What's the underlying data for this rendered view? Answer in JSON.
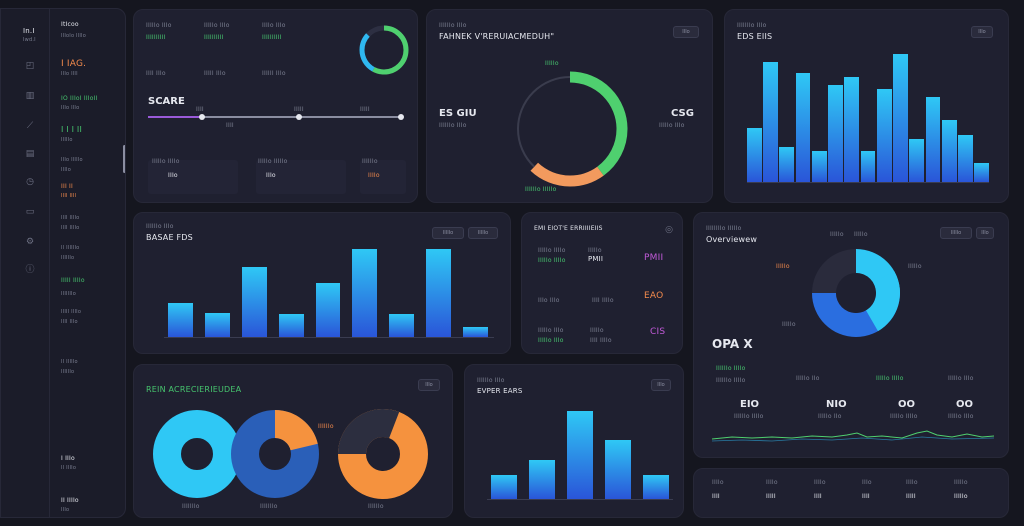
{
  "sidebar": {
    "title": "In.I",
    "subtitle": "Iwd.I",
    "items": [
      {
        "label": "ItIcoo",
        "sub": "IIIoIo IIIIo"
      },
      {
        "label": "I IAG.",
        "sub": "IIIo IIII"
      },
      {
        "label": "IO IIIoI IIIoII",
        "sub": "IIIo IIIo"
      },
      {
        "label": "I I I II",
        "sub": "IIIIIo"
      },
      {
        "label": "IIIo IIIIIo",
        "sub": "IIIIo"
      },
      {
        "label": "III II",
        "sub": "IIII IIII"
      },
      {
        "label": "IIII IIIIo",
        "sub": "IIII IIIIo"
      },
      {
        "label": "II IIIIIIo",
        "sub": "IIIIIIo"
      },
      {
        "label": "IIIII IIIIo",
        "sub": "IIIIIIIo"
      },
      {
        "label": "IIIII IIIIo",
        "sub": "IIII IIIo"
      },
      {
        "label": "II IIIIIo",
        "sub": "IIIIIIo"
      },
      {
        "label": "I IIIo",
        "sub": "II IIIIo"
      },
      {
        "label": "II IIIIo",
        "sub": "IIIo"
      }
    ],
    "icons": [
      "chart-icon",
      "grid-icon",
      "pen-icon",
      "folder-icon",
      "clock-icon",
      "doc-icon",
      "settings-icon",
      "info-icon"
    ]
  },
  "top_left": {
    "labels": [
      "IIIIIo IIIo",
      "IIIIIo IIIo",
      "IIIIo IIIo"
    ],
    "values": [
      "IIIIIIIIII",
      "IIIIIIIIII",
      "IIIIIIIIII"
    ],
    "small_values": [
      "IIII IIIo",
      "IIIII IIIo",
      "IIIIII IIIo"
    ],
    "heading": "SCARE",
    "slider_labels": [
      "IIII",
      "IIIII",
      "IIIII",
      "IIII"
    ],
    "stats": [
      {
        "label": "IIIIIo IIIIo",
        "value": "IIIo"
      },
      {
        "label": "IIIIIo IIIIIo",
        "value": "IIIo"
      },
      {
        "label": "IIIIIIo",
        "value": "IIIIo"
      }
    ]
  },
  "donut_panel": {
    "subtitle": "IIIIIIo IIIo",
    "title": "FAHNEK V'RERUIACMEDUH\"",
    "button": "IIIo",
    "left_value": "ES GIU",
    "left_caption": "IIIIIIo IIIo",
    "right_value": "CSG",
    "right_caption": "IIIIIo IIIo",
    "top_label": "IIIIIo",
    "bottom_label": "IIIIIIo IIIIIo",
    "segments": [
      {
        "name": "green",
        "value": 40,
        "color": "#4fd06f"
      },
      {
        "name": "orange",
        "value": 22,
        "color": "#f29a5e"
      },
      {
        "name": "dark",
        "value": 38,
        "color": "#3a3c4d"
      }
    ]
  },
  "bar_top_right": {
    "subtitle": "IIIIIIIo IIIo",
    "title": "EDS EIIS",
    "button": "IIIo",
    "y_ticks": [
      "IIIo",
      "IIIo",
      "IIIo",
      "IIIo",
      "IIIo",
      "IIIo",
      "IIIo",
      "IIIo",
      "IIIo",
      "IIIo"
    ],
    "x_labels": [
      "IIIo",
      "IIIo",
      "IIIo",
      "IIIo",
      "IIIo",
      "IIIo",
      "IIIo",
      "IIIo",
      "IIIo",
      "IIIo",
      "IIIo",
      "IIIo"
    ]
  },
  "bar_mid_left": {
    "subtitle": "IIIIIIo IIIo",
    "title": "BASAE FDS",
    "buttons": [
      "IIIIIo",
      "IIIIIo"
    ],
    "y_ticks": [
      "IIIo",
      "IIIo",
      "IIIo",
      "IIIo",
      "IIIo",
      "IIIo",
      "IIIo"
    ],
    "x_labels": [
      "IIo IIIIo",
      "IIIIo",
      "IIIIo",
      "IIIo",
      "IIIo",
      "IIIIo",
      "IIIIo",
      "IIIIo",
      "IIIIIo"
    ]
  },
  "mid_center": {
    "title": "EMI EIOT'E ERRIIIIEIIS",
    "rows": [
      {
        "left": "IIIIIo IIIIo",
        "mid": "IIIIIo",
        "right_value": "PMII",
        "right_sub": "IIIo"
      },
      {
        "left": "IIIo IIIo",
        "mid": "IIII IIIIo",
        "right_value": "EAO",
        "right_sub": "IIIIo"
      },
      {
        "left": "IIIIIo IIIo",
        "mid": "IIIIIo",
        "right_value": "IIIo",
        "right_sub": "IIIIo"
      },
      {
        "left": "IIIo IIIo",
        "mid": "IIII IIIIo",
        "right_value": "CIS",
        "right_sub": "IIIIo"
      }
    ]
  },
  "pie_panel": {
    "title": "Overviewew",
    "buttons": [
      "IIIIIo",
      "IIIo"
    ],
    "big_value": "OPA X",
    "callouts": [
      "IIIIIo",
      "IIIIIo",
      "IIIIIo",
      "IIIIIo",
      "IIIIIo"
    ],
    "stats": [
      {
        "value": "EIO",
        "label": "IIIIIIo IIIIo"
      },
      {
        "value": "NIO",
        "label": "IIIIIo IIo"
      },
      {
        "value": "OO",
        "label": "IIIIIo IIIIo"
      },
      {
        "value": "OO",
        "label": "IIIIIo IIIo"
      }
    ],
    "caption": "IIIIIIIIo IIIIIo"
  },
  "donuts_bottom": {
    "title": "REIN ACRECIERIEUDEA",
    "subtitle": "IIIIIIIIIo IIIIIo",
    "button": "IIIo",
    "labels": [
      "IIIIIIIo",
      "IIIIIIIo",
      "IIIIIIo"
    ],
    "callout": "IIIIIIo"
  },
  "bar_bottom": {
    "subtitle": "IIIIIIo IIIo",
    "title": "EVPER EARS",
    "button": "IIIo",
    "y_ticks": [
      "IIIo",
      "IIIo",
      "IIIo",
      "IIIo",
      "IIIo",
      "IIIo"
    ],
    "x_labels": [
      "IIIIIo",
      "IIIIIo",
      "IIIo IIIo",
      "IIIIo",
      "IIIIIo"
    ]
  },
  "bottom_right": {
    "labels": [
      "IIIIo",
      "IIIIo",
      "IIIIo",
      "IIIo",
      "IIIIo",
      "IIIIIo"
    ],
    "values": [
      "IIII",
      "IIIII",
      "IIII",
      "IIII",
      "IIIII",
      "IIIIIo"
    ]
  },
  "chart_data": [
    {
      "type": "bar",
      "values": [
        14,
        31,
        9,
        28,
        8,
        25,
        27,
        8,
        24,
        33,
        11,
        22,
        16,
        12,
        5
      ]
    },
    {
      "type": "bar",
      "values": [
        35,
        25,
        72,
        24,
        55,
        90,
        24,
        90,
        10
      ]
    },
    {
      "type": "bar",
      "values": [
        25,
        40,
        90,
        60,
        25
      ]
    }
  ]
}
